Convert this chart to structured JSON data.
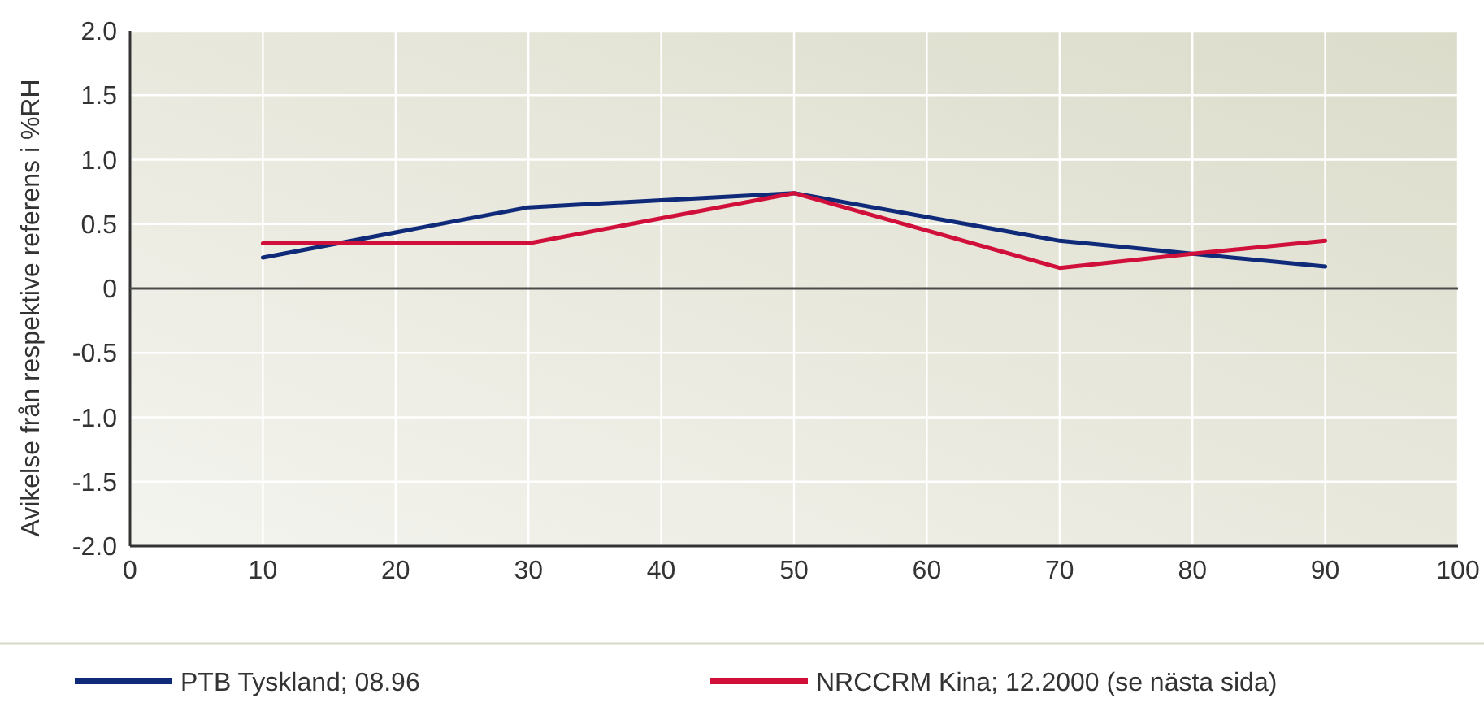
{
  "chart_data": {
    "type": "line",
    "ylabel": "Avikelse från respektive referens i %RH",
    "xlim": [
      0,
      100
    ],
    "xticks": [
      0,
      10,
      20,
      30,
      40,
      50,
      60,
      70,
      80,
      90,
      100
    ],
    "ylim": [
      -2,
      2
    ],
    "yticks": [
      {
        "value": 2,
        "label": "2.0"
      },
      {
        "value": 1.5,
        "label": "1.5"
      },
      {
        "value": 1,
        "label": "1.0"
      },
      {
        "value": 0.5,
        "label": "0.5"
      },
      0,
      {
        "value": -0.5,
        "label": "-0.5"
      },
      {
        "value": -1,
        "label": "-1.0"
      },
      {
        "value": -1.5,
        "label": "-1.5"
      },
      {
        "value": -2,
        "label": "-2.0"
      }
    ],
    "ref_lines": [
      {
        "axis": "y",
        "value": 0,
        "color": "#4a4a48"
      }
    ],
    "grid": true,
    "legend": "bottom",
    "marker": "none",
    "line_style": "solid",
    "series": [
      {
        "name": "PTB Tyskland; 08.96",
        "color": "#102a7a",
        "x": [
          10,
          30,
          50,
          70,
          90
        ],
        "values": [
          0.24,
          0.63,
          0.74,
          0.37,
          0.17
        ]
      },
      {
        "name": "NRCCRM Kina; 12.2000 (se nästa sida)",
        "color": "#d0103a",
        "x": [
          10,
          30,
          50,
          70,
          80,
          90
        ],
        "values": [
          0.35,
          0.35,
          0.74,
          0.16,
          0.27,
          0.37
        ]
      }
    ]
  }
}
